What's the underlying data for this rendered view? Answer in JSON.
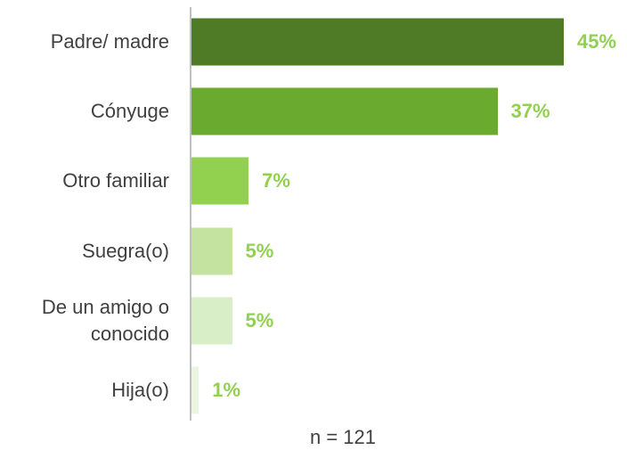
{
  "chart_data": {
    "type": "bar",
    "orientation": "horizontal",
    "categories": [
      "Padre/ madre",
      "Cónyuge",
      "Otro familiar",
      "Suegra(o)",
      "De un amigo o conocido",
      "Hija(o)"
    ],
    "values": [
      45,
      37,
      7,
      5,
      5,
      1
    ],
    "value_labels": [
      "45%",
      "37%",
      "7%",
      "5%",
      "5%",
      "1%"
    ],
    "colors": [
      "#4f7b27",
      "#6aab2f",
      "#92d050",
      "#c4e3a1",
      "#d8eec7",
      "#ebf6e2"
    ],
    "label_color": "#92d050",
    "note": "n = 121"
  }
}
